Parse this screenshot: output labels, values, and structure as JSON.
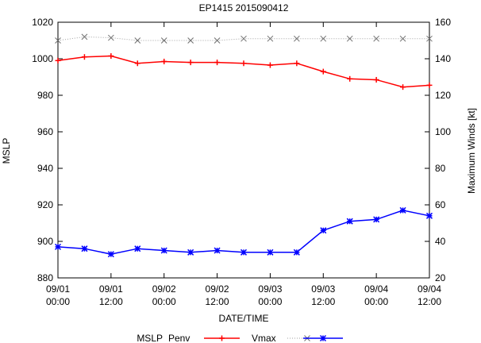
{
  "chart_data": {
    "type": "line",
    "title": "EP1415 2015090412",
    "xlabel": "DATE/TIME",
    "ylabel_left": "MSLP",
    "ylabel_right": "Maximum Winds [kt]",
    "x_hours": [
      0,
      6,
      12,
      18,
      24,
      30,
      36,
      42,
      48,
      54,
      60,
      66,
      72,
      78,
      84
    ],
    "xlim_hours": [
      0,
      84
    ],
    "x_ticks": [
      {
        "hour": 0,
        "line1": "09/01",
        "line2": "00:00"
      },
      {
        "hour": 12,
        "line1": "09/01",
        "line2": "12:00"
      },
      {
        "hour": 24,
        "line1": "09/02",
        "line2": "00:00"
      },
      {
        "hour": 36,
        "line1": "09/02",
        "line2": "12:00"
      },
      {
        "hour": 48,
        "line1": "09/03",
        "line2": "00:00"
      },
      {
        "hour": 60,
        "line1": "09/03",
        "line2": "12:00"
      },
      {
        "hour": 72,
        "line1": "09/04",
        "line2": "00:00"
      },
      {
        "hour": 84,
        "line1": "09/04",
        "line2": "12:00"
      }
    ],
    "y_left": {
      "min": 880,
      "max": 1020,
      "step": 20,
      "ticks": [
        "880",
        "900",
        "920",
        "940",
        "960",
        "980",
        "1000",
        "1020"
      ]
    },
    "y_right": {
      "min": 20,
      "max": 160,
      "step": 20,
      "ticks": [
        "20",
        "40",
        "60",
        "80",
        "100",
        "120",
        "140",
        "160"
      ]
    },
    "grid": false,
    "legend_placement": "bottom",
    "legend_title": "MSLP",
    "series": [
      {
        "name": "Penv",
        "axis": "left",
        "color": "#ff0000",
        "marker": "plus",
        "style": "solid",
        "values": [
          999,
          1001,
          1001.5,
          997.5,
          998.5,
          998,
          998,
          997.5,
          996.5,
          997.5,
          993,
          989,
          988.5,
          984.5,
          985.5
        ]
      },
      {
        "name": "Vmax",
        "axis": "right",
        "color": "#a0a0a0",
        "marker": "cross",
        "style": "dotted",
        "values": [
          150,
          152,
          151.5,
          150,
          150,
          150,
          150,
          151,
          151,
          151,
          151,
          151,
          151,
          151,
          151
        ]
      },
      {
        "name": "",
        "axis": "left",
        "color": "#0000ff",
        "marker": "star",
        "style": "solid",
        "values": [
          897,
          896,
          893,
          896,
          895,
          894,
          895,
          894,
          894,
          894,
          906,
          911,
          912,
          917,
          914
        ]
      }
    ]
  }
}
